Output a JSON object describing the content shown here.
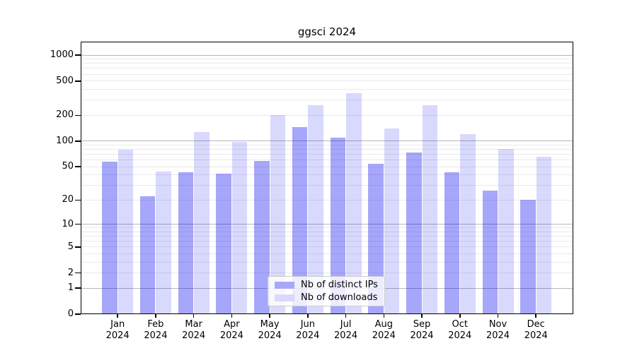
{
  "chart_data": {
    "type": "bar",
    "title": "ggsci 2024",
    "scale": "log10(1+y)",
    "grid": "horizontal, major at decades (1,10,100,1000), minor at 2-9 multiples",
    "legend_position": "lower center inside plot",
    "year_label": "2024",
    "categories": [
      "Jan",
      "Feb",
      "Mar",
      "Apr",
      "May",
      "Jun",
      "Jul",
      "Aug",
      "Sep",
      "Oct",
      "Nov",
      "Dec"
    ],
    "series": [
      {
        "name": "Nb of distinct IPs",
        "color": "#a8a8f9",
        "values": [
          57,
          22,
          43,
          41,
          58,
          145,
          110,
          54,
          74,
          43,
          26,
          20
        ]
      },
      {
        "name": "Nb of downloads",
        "color": "#d9d9fb",
        "values": [
          79,
          44,
          127,
          97,
          200,
          262,
          360,
          140,
          262,
          120,
          81,
          65
        ]
      }
    ],
    "yticks": [
      0,
      1,
      2,
      5,
      10,
      20,
      50,
      100,
      200,
      500,
      1000
    ],
    "ylim": [
      0,
      1400
    ],
    "xlabel": "",
    "ylabel": "",
    "colors": {
      "bar_ips_rgba": "rgba(0,0,240,0.35)",
      "bar_downloads_rgba": "rgba(0,0,240,0.15)",
      "grid_major": "#b6b6b6",
      "grid_minor": "#eaeaea",
      "axis": "#000000"
    }
  }
}
